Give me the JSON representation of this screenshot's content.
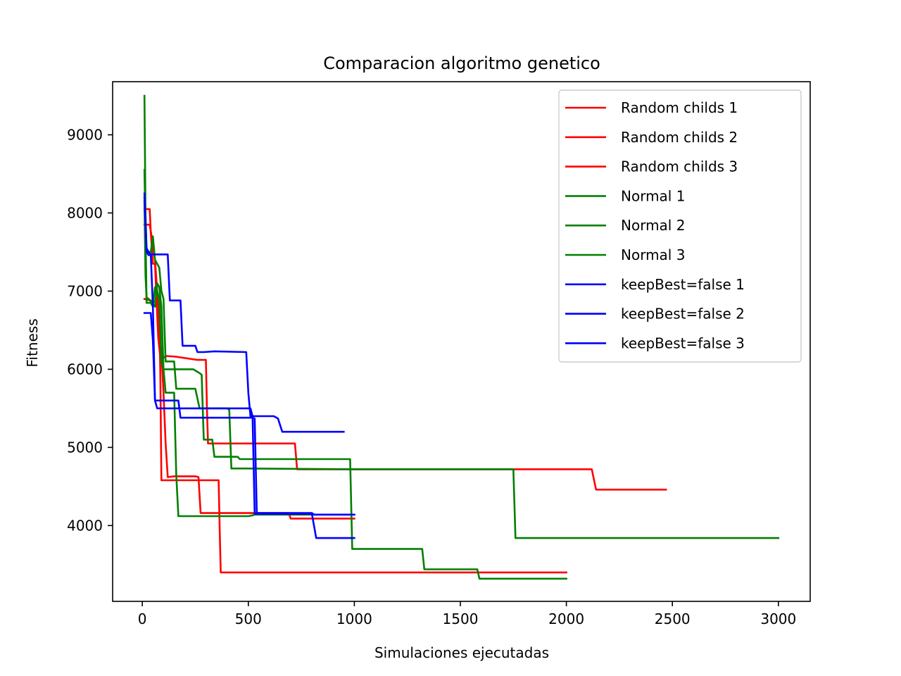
{
  "chart_data": {
    "type": "line",
    "title": "Comparacion algoritmo genetico",
    "xlabel": "Simulaciones ejecutadas",
    "ylabel": "Fitness",
    "xlim": [
      -140,
      3150
    ],
    "ylim": [
      3030,
      9680
    ],
    "xticks": [
      0,
      500,
      1000,
      1500,
      2000,
      2500,
      3000
    ],
    "yticks": [
      4000,
      5000,
      6000,
      7000,
      8000,
      9000
    ],
    "grid": false,
    "legend_position": "top-right",
    "series": [
      {
        "name": "Random childs 1",
        "color": "#ff0000",
        "points": [
          [
            10,
            8050
          ],
          [
            35,
            8050
          ],
          [
            40,
            7750
          ],
          [
            50,
            7350
          ],
          [
            60,
            7350
          ],
          [
            70,
            6700
          ],
          [
            75,
            6400
          ],
          [
            85,
            6150
          ],
          [
            100,
            6150
          ],
          [
            110,
            6170
          ],
          [
            160,
            6160
          ],
          [
            260,
            6120
          ],
          [
            300,
            6120
          ],
          [
            305,
            5500
          ],
          [
            310,
            5050
          ],
          [
            400,
            5050
          ],
          [
            700,
            5050
          ],
          [
            720,
            5050
          ],
          [
            730,
            4720
          ],
          [
            760,
            4720
          ],
          [
            1500,
            4720
          ],
          [
            2000,
            4720
          ],
          [
            2120,
            4720
          ],
          [
            2140,
            4460
          ],
          [
            2470,
            4460
          ]
        ]
      },
      {
        "name": "Random childs 2",
        "color": "#ff0000",
        "points": [
          [
            10,
            6900
          ],
          [
            40,
            6880
          ],
          [
            60,
            6860
          ],
          [
            80,
            6840
          ],
          [
            85,
            5900
          ],
          [
            90,
            4580
          ],
          [
            120,
            4580
          ],
          [
            160,
            4580
          ],
          [
            240,
            4580
          ],
          [
            360,
            4580
          ],
          [
            365,
            3950
          ],
          [
            370,
            3400
          ],
          [
            800,
            3400
          ],
          [
            1500,
            3400
          ],
          [
            2000,
            3400
          ]
        ]
      },
      {
        "name": "Random childs 3",
        "color": "#ff0000",
        "points": [
          [
            10,
            7850
          ],
          [
            35,
            7850
          ],
          [
            50,
            7600
          ],
          [
            60,
            7400
          ],
          [
            70,
            7000
          ],
          [
            80,
            6500
          ],
          [
            90,
            6200
          ],
          [
            100,
            5700
          ],
          [
            110,
            5050
          ],
          [
            120,
            4620
          ],
          [
            150,
            4630
          ],
          [
            250,
            4630
          ],
          [
            265,
            4620
          ],
          [
            275,
            4160
          ],
          [
            300,
            4160
          ],
          [
            690,
            4160
          ],
          [
            700,
            4090
          ],
          [
            1000,
            4090
          ]
        ]
      },
      {
        "name": "Normal 1",
        "color": "#008000",
        "points": [
          [
            10,
            9500
          ],
          [
            15,
            8000
          ],
          [
            20,
            7500
          ],
          [
            40,
            7500
          ],
          [
            50,
            7700
          ],
          [
            60,
            7400
          ],
          [
            70,
            7350
          ],
          [
            80,
            7300
          ],
          [
            90,
            7000
          ],
          [
            100,
            6900
          ],
          [
            110,
            6100
          ],
          [
            150,
            6100
          ],
          [
            160,
            5750
          ],
          [
            170,
            5750
          ],
          [
            250,
            5750
          ],
          [
            270,
            5500
          ],
          [
            320,
            5500
          ],
          [
            360,
            5500
          ],
          [
            400,
            5500
          ],
          [
            410,
            5480
          ],
          [
            420,
            4730
          ],
          [
            490,
            4730
          ],
          [
            1000,
            4720
          ],
          [
            1750,
            4720
          ],
          [
            1760,
            3840
          ],
          [
            3000,
            3840
          ]
        ]
      },
      {
        "name": "Normal 2",
        "color": "#008000",
        "points": [
          [
            10,
            8550
          ],
          [
            15,
            7800
          ],
          [
            20,
            6850
          ],
          [
            40,
            6850
          ],
          [
            50,
            6800
          ],
          [
            60,
            7050
          ],
          [
            70,
            7000
          ],
          [
            80,
            6900
          ],
          [
            90,
            6100
          ],
          [
            100,
            6000
          ],
          [
            110,
            5700
          ],
          [
            150,
            5700
          ],
          [
            160,
            4650
          ],
          [
            170,
            4120
          ],
          [
            300,
            4120
          ],
          [
            500,
            4120
          ],
          [
            520,
            4130
          ],
          [
            530,
            4140
          ],
          [
            1000,
            4140
          ]
        ]
      },
      {
        "name": "Normal 3",
        "color": "#008000",
        "points": [
          [
            10,
            8150
          ],
          [
            15,
            7200
          ],
          [
            20,
            6920
          ],
          [
            30,
            6900
          ],
          [
            60,
            6800
          ],
          [
            70,
            7100
          ],
          [
            80,
            7050
          ],
          [
            90,
            6800
          ],
          [
            100,
            6000
          ],
          [
            240,
            6000
          ],
          [
            270,
            5950
          ],
          [
            280,
            5930
          ],
          [
            285,
            5500
          ],
          [
            290,
            5100
          ],
          [
            330,
            5100
          ],
          [
            340,
            4880
          ],
          [
            450,
            4880
          ],
          [
            460,
            4850
          ],
          [
            980,
            4850
          ],
          [
            990,
            3700
          ],
          [
            1320,
            3700
          ],
          [
            1330,
            3440
          ],
          [
            1580,
            3440
          ],
          [
            1590,
            3320
          ],
          [
            2000,
            3320
          ]
        ]
      },
      {
        "name": "keepBest=false 1",
        "color": "#0000ff",
        "points": [
          [
            10,
            8250
          ],
          [
            20,
            7550
          ],
          [
            30,
            7500
          ],
          [
            40,
            7470
          ],
          [
            120,
            7470
          ],
          [
            130,
            6880
          ],
          [
            180,
            6880
          ],
          [
            190,
            6300
          ],
          [
            250,
            6300
          ],
          [
            260,
            6220
          ],
          [
            290,
            6220
          ],
          [
            340,
            6230
          ],
          [
            490,
            6220
          ],
          [
            500,
            5700
          ],
          [
            510,
            5400
          ],
          [
            620,
            5400
          ],
          [
            640,
            5370
          ],
          [
            660,
            5200
          ],
          [
            950,
            5200
          ]
        ]
      },
      {
        "name": "keepBest=false 2",
        "color": "#0000ff",
        "points": [
          [
            10,
            8200
          ],
          [
            20,
            7500
          ],
          [
            30,
            7460
          ],
          [
            40,
            7470
          ],
          [
            50,
            6800
          ],
          [
            60,
            5600
          ],
          [
            170,
            5600
          ],
          [
            180,
            5380
          ],
          [
            500,
            5380
          ],
          [
            520,
            5380
          ],
          [
            530,
            5370
          ],
          [
            540,
            4160
          ],
          [
            800,
            4160
          ],
          [
            810,
            4140
          ],
          [
            1000,
            4140
          ]
        ]
      },
      {
        "name": "keepBest=false 3",
        "color": "#0000ff",
        "points": [
          [
            10,
            6720
          ],
          [
            40,
            6720
          ],
          [
            50,
            6370
          ],
          [
            60,
            5600
          ],
          [
            70,
            5500
          ],
          [
            100,
            5500
          ],
          [
            300,
            5500
          ],
          [
            510,
            5500
          ],
          [
            520,
            5400
          ],
          [
            530,
            4150
          ],
          [
            760,
            4150
          ],
          [
            800,
            4150
          ],
          [
            820,
            3840
          ],
          [
            1000,
            3840
          ]
        ]
      }
    ]
  }
}
